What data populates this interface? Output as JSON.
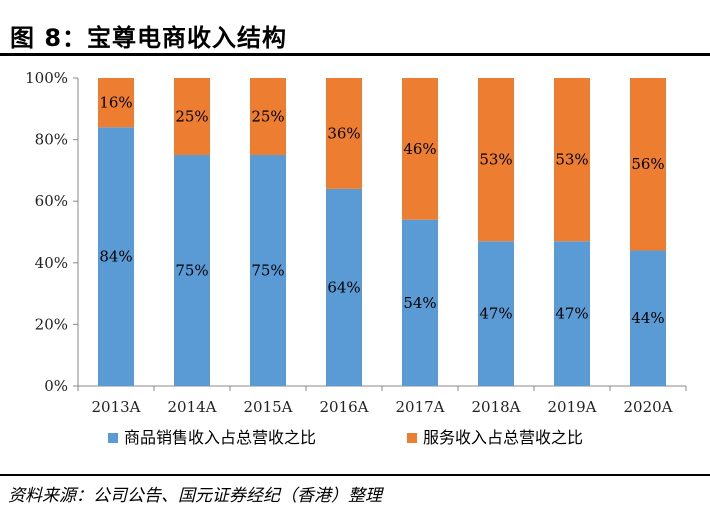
{
  "figure_title": "图 8：宝尊电商收入结构",
  "source_note": "资料来源：公司公告、国元证券经纪（香港）整理",
  "colors": {
    "series1": "#5B9BD5",
    "series2": "#ED7D31",
    "axis": "#888888"
  },
  "chart_data": {
    "type": "bar",
    "stacked": true,
    "percent_stacked": true,
    "categories": [
      "2013A",
      "2014A",
      "2015A",
      "2016A",
      "2017A",
      "2018A",
      "2019A",
      "2020A"
    ],
    "series": [
      {
        "name": "商品销售收入占总营收之比",
        "values": [
          84,
          75,
          75,
          64,
          54,
          47,
          47,
          44
        ],
        "labels": [
          "84%",
          "75%",
          "75%",
          "64%",
          "54%",
          "47%",
          "47%",
          "44%"
        ]
      },
      {
        "name": "服务收入占总营收之比",
        "values": [
          16,
          25,
          25,
          36,
          46,
          53,
          53,
          56
        ],
        "labels": [
          "16%",
          "25%",
          "25%",
          "36%",
          "46%",
          "53%",
          "53%",
          "56%"
        ]
      }
    ],
    "ylim": [
      0,
      100
    ],
    "yticks": [
      "0%",
      "20%",
      "40%",
      "60%",
      "80%",
      "100%"
    ],
    "grid": false,
    "legend": "bottom"
  }
}
